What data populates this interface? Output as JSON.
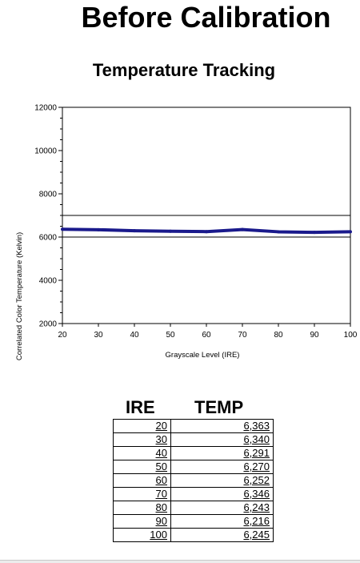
{
  "page": {
    "title": "Before Calibration"
  },
  "chart_data": {
    "type": "line",
    "title": "Temperature Tracking",
    "xlabel": "Grayscale Level (IRE)",
    "ylabel": "Correlated Color Temperature (Kelvin)",
    "xlim": [
      20,
      100
    ],
    "ylim": [
      2000,
      12000
    ],
    "x_ticks": [
      20,
      30,
      40,
      50,
      60,
      70,
      80,
      90,
      100
    ],
    "y_ticks": [
      2000,
      4000,
      6000,
      8000,
      10000,
      12000
    ],
    "grid": false,
    "reference_lines": [
      6000,
      7000
    ],
    "series": [
      {
        "x": [
          20,
          30,
          40,
          50,
          60,
          70,
          80,
          90,
          100
        ],
        "values": [
          6363,
          6340,
          6291,
          6270,
          6252,
          6346,
          6243,
          6216,
          6245
        ],
        "color": "#1a1a8c"
      }
    ]
  },
  "table": {
    "headers": [
      "IRE",
      "TEMP"
    ],
    "rows": [
      [
        "20",
        "6,363"
      ],
      [
        "30",
        "6,340"
      ],
      [
        "40",
        "6,291"
      ],
      [
        "50",
        "6,270"
      ],
      [
        "60",
        "6,252"
      ],
      [
        "70",
        "6,346"
      ],
      [
        "80",
        "6,243"
      ],
      [
        "90",
        "6,216"
      ],
      [
        "100",
        "6,245"
      ]
    ]
  }
}
